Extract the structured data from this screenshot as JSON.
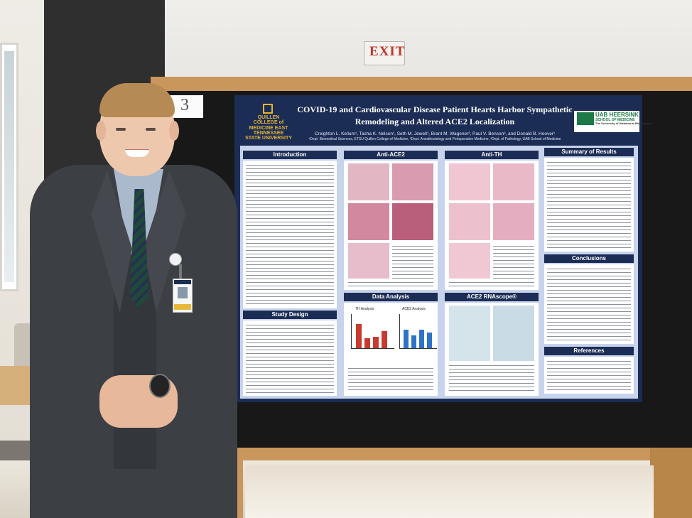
{
  "sign": {
    "exit": "EXIT"
  },
  "board": {
    "number": "3"
  },
  "poster": {
    "title_line1": "COVID-19 and Cardiovascular Disease Patient Hearts Harbor Sympathetic",
    "title_line2": "Remodeling and Altered ACE2 Localization",
    "authors": "Creighton L. Kellum¹, Tasha K. Nelson¹, Seth M. Jewell¹, Brant M. Wagener², Paul V. Benson³, and Donald B. Hoover¹",
    "affiliations": "¹Dept. Biomedical Sciences, ETSU Quillen College of Medicine, ²Dept. Anesthesiology and Perioperative Medicine, ³Dept. of Pathology, UAB School of Medicine",
    "logo_left": "QUILLEN COLLEGE of MEDICINE EAST TENNESSEE STATE UNIVERSITY",
    "logo_right_line1": "UAB HEERSINK",
    "logo_right_line2": "SCHOOL OF MEDICINE",
    "logo_right_line3": "The University of Alabama at Birmingham",
    "sections": {
      "introduction": "Introduction",
      "anti_ace2": "Anti-ACE2",
      "anti_th": "Anti-TH",
      "summary": "Summary of Results",
      "data_analysis": "Data Analysis",
      "ace2_rnascope": "ACE2 RNAscope®",
      "conclusions": "Conclusions",
      "study_design": "Study Design",
      "references": "References"
    },
    "charts": {
      "th_title": "TH Analysis",
      "ace2_title": "ACE2 Analysis"
    }
  }
}
